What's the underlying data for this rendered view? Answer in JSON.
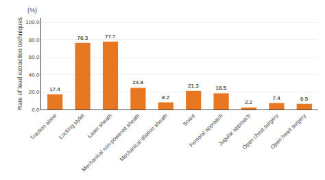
{
  "chart_data": {
    "type": "bar",
    "ylabel": "Rate of lead extraction techniques",
    "annotations": [
      "(%)"
    ],
    "categories": [
      "Traction alone",
      "Locking stylet",
      "Laser sheath",
      "Mechanical non-powered sheath",
      "Mechanical dilation sheath",
      "Snare",
      "Femoral approach",
      "Jugular approach",
      "Open chest surgery",
      "Open heart surgery"
    ],
    "values": [
      17.4,
      76.3,
      77.7,
      24.8,
      8.2,
      21.3,
      18.5,
      2.2,
      7.4,
      6.5
    ],
    "color": "#E87722",
    "ylim": [
      0,
      105
    ],
    "yticks": [
      {
        "value": 0.0,
        "label": "0.0"
      },
      {
        "value": 20.0,
        "label": "20.0"
      },
      {
        "value": 40.0,
        "label": "40.0"
      },
      {
        "value": 60.0,
        "label": "60.0"
      },
      {
        "value": 80.0,
        "label": "80.0"
      },
      {
        "value": 100.0,
        "label": "100.0"
      }
    ],
    "grid": true,
    "data_labels": true
  }
}
